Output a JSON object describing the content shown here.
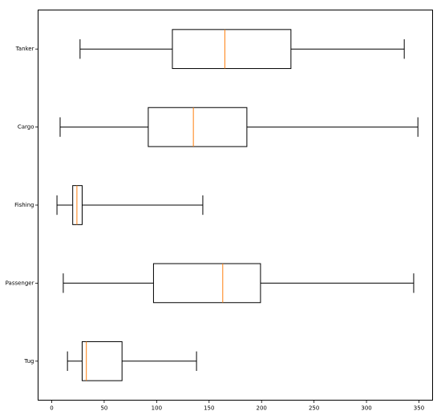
{
  "chart_data": {
    "type": "boxplot",
    "orientation": "horizontal",
    "title": "",
    "xlabel": "",
    "ylabel": "",
    "xlim": [
      -13,
      363
    ],
    "xticks": [
      0,
      50,
      100,
      150,
      200,
      250,
      300,
      350
    ],
    "grid": false,
    "colors": {
      "box": "#000000",
      "median": "#ff7f0e",
      "axes": "#000000",
      "background": "#ffffff"
    },
    "categories": [
      "Tanker",
      "Cargo",
      "Fishing",
      "Passenger",
      "Tug"
    ],
    "boxes": [
      {
        "label": "Tanker",
        "whisker_low": 27,
        "q1": 115,
        "median": 165,
        "q3": 228,
        "whisker_high": 336
      },
      {
        "label": "Cargo",
        "whisker_low": 8,
        "q1": 92,
        "median": 135,
        "q3": 186,
        "whisker_high": 349
      },
      {
        "label": "Fishing",
        "whisker_low": 5,
        "q1": 20,
        "median": 24,
        "q3": 29,
        "whisker_high": 144
      },
      {
        "label": "Passenger",
        "whisker_low": 11,
        "q1": 97,
        "median": 163,
        "q3": 199,
        "whisker_high": 345
      },
      {
        "label": "Tug",
        "whisker_low": 15,
        "q1": 29,
        "median": 33,
        "q3": 67,
        "whisker_high": 138
      }
    ]
  }
}
